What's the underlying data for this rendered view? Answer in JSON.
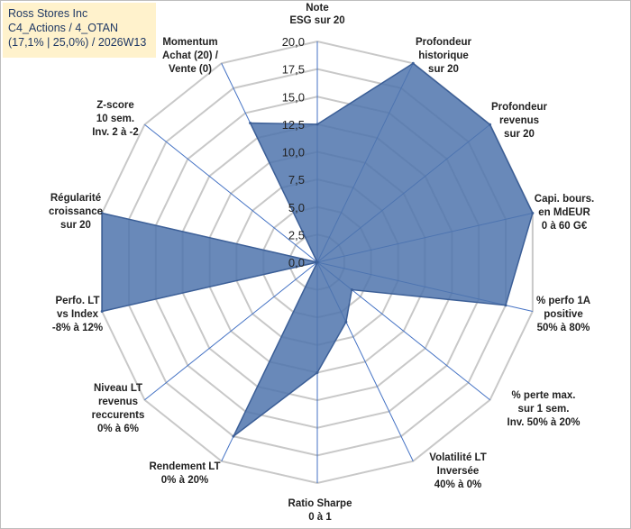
{
  "header": {
    "line1": "Ross Stores Inc",
    "line2": "C4_Actions / 4_OTAN",
    "line3": "(17,1% | 25,0%) / 2026W13"
  },
  "chart_data": {
    "type": "radar",
    "series_name": "Ross Stores Inc",
    "rmin": 0,
    "rmax": 20,
    "step": 2.5,
    "tick_labels": [
      "0,0",
      "2,5",
      "5,0",
      "7,5",
      "10,0",
      "12,5",
      "15,0",
      "17,5",
      "20,0"
    ],
    "axes": [
      {
        "label": [
          "Note",
          "ESG sur 20"
        ],
        "value": 12.5
      },
      {
        "label": [
          "Profondeur",
          "historique",
          "sur 20"
        ],
        "value": 20
      },
      {
        "label": [
          "Profondeur",
          "revenus",
          "sur 20"
        ],
        "value": 20
      },
      {
        "label": [
          "Capi. bours.",
          "en MdEUR",
          "0 à 60 G€"
        ],
        "value": 20
      },
      {
        "label": [
          "% perfo 1A",
          "positive",
          "50% à 80%"
        ],
        "value": 17.5
      },
      {
        "label": [
          "% perte max.",
          "sur 1 sem.",
          "Inv. 50% à 20%"
        ],
        "value": 4
      },
      {
        "label": [
          "Volatilité LT",
          "Inversée",
          "40% à 0%"
        ],
        "value": 6
      },
      {
        "label": [
          "Ratio Sharpe",
          "0 à 1"
        ],
        "value": 10
      },
      {
        "label": [
          "Rendement LT",
          "0% à 20%"
        ],
        "value": 17.5
      },
      {
        "label": [
          "Niveau LT",
          "revenus",
          "reccurents",
          "0% à 6%"
        ],
        "value": 0
      },
      {
        "label": [
          "Perfo. LT",
          "vs Index",
          "-8% à 12%"
        ],
        "value": 20
      },
      {
        "label": [
          "Régularité",
          "croissance",
          "sur 20"
        ],
        "value": 20
      },
      {
        "label": [
          "Z-score",
          "10 sem.",
          "Inv. 2 à -2"
        ],
        "value": 0
      },
      {
        "label": [
          "Momentum",
          "Achat (20) /",
          "Vente (0)"
        ],
        "value": 14
      }
    ],
    "colors": {
      "fill": "#4f74ad",
      "stroke": "#3c5f97",
      "axis": "#4472c4",
      "grid": "#c8c8c8"
    }
  }
}
